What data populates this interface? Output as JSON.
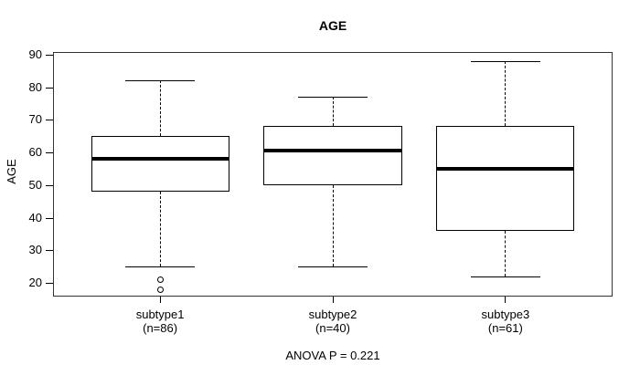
{
  "chart_data": {
    "type": "boxplot",
    "title": "AGE",
    "xlabel": "",
    "ylabel": "AGE",
    "ylim": [
      15.8,
      90.8
    ],
    "yticks": [
      20,
      30,
      40,
      50,
      60,
      70,
      80,
      90
    ],
    "grid": false,
    "legend": false,
    "annotation": "ANOVA P = 0.221",
    "colors": {
      "line": "#000000",
      "frame": "#333333",
      "background": "#ffffff",
      "text": "#000000"
    },
    "boxes": [
      {
        "label": "subtype1",
        "sublabel": "(n=86)",
        "whisker_low": 25,
        "q1": 48,
        "median": 58,
        "q3": 65,
        "whisker_high": 82,
        "outliers": [
          21,
          18
        ]
      },
      {
        "label": "subtype2",
        "sublabel": "(n=40)",
        "whisker_low": 25,
        "q1": 50,
        "median": 60.5,
        "q3": 68,
        "whisker_high": 77,
        "outliers": []
      },
      {
        "label": "subtype3",
        "sublabel": "(n=61)",
        "whisker_low": 22,
        "q1": 36,
        "median": 55,
        "q3": 68,
        "whisker_high": 88,
        "outliers": []
      }
    ]
  }
}
